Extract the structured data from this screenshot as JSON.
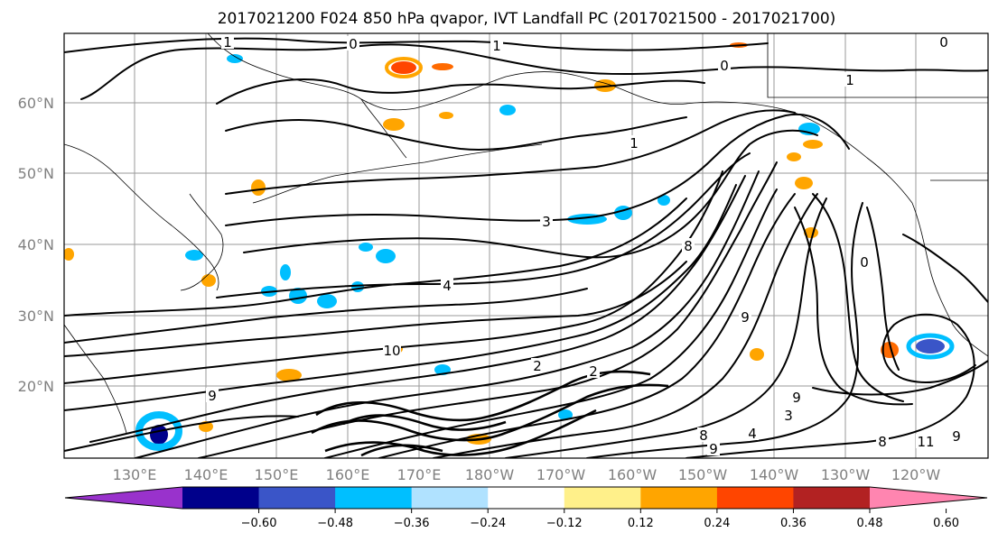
{
  "title": "2017021200 F024 850 hPa qvapor, IVT Landfall PC (2017021500 - 2017021700)",
  "map": {
    "lat_labels": [
      "60°N",
      "50°N",
      "40°N",
      "30°N",
      "20°N"
    ],
    "lon_labels": [
      "130°E",
      "140°E",
      "150°E",
      "160°E",
      "170°E",
      "180°W",
      "170°W",
      "160°W",
      "150°W",
      "140°W",
      "130°W",
      "120°W"
    ],
    "lat_range": [
      10,
      70
    ],
    "lon_range_label": "approx. 122°E to 113°W",
    "gridlines": true,
    "contour_color": "#000000",
    "contour_labels": [
      "1",
      "0",
      "1",
      "0",
      "1",
      "0",
      "3",
      "4",
      "9",
      "10",
      "2",
      "2",
      "1",
      "9",
      "8",
      "0",
      "9",
      "8",
      "11",
      "9",
      "8",
      "4",
      "3",
      "9"
    ]
  },
  "colorbar": {
    "ticks": [
      "−0.60",
      "−0.48",
      "−0.36",
      "−0.24",
      "−0.12",
      "0.12",
      "0.24",
      "0.36",
      "0.48",
      "0.60"
    ],
    "colors": [
      "#9932cc",
      "#00008b",
      "#3a55c8",
      "#00bfff",
      "#b0e2ff",
      "#ffffff",
      "#fff08a",
      "#ffa500",
      "#ff4500",
      "#b22222",
      "#ff85b0"
    ],
    "extend": "both"
  }
}
